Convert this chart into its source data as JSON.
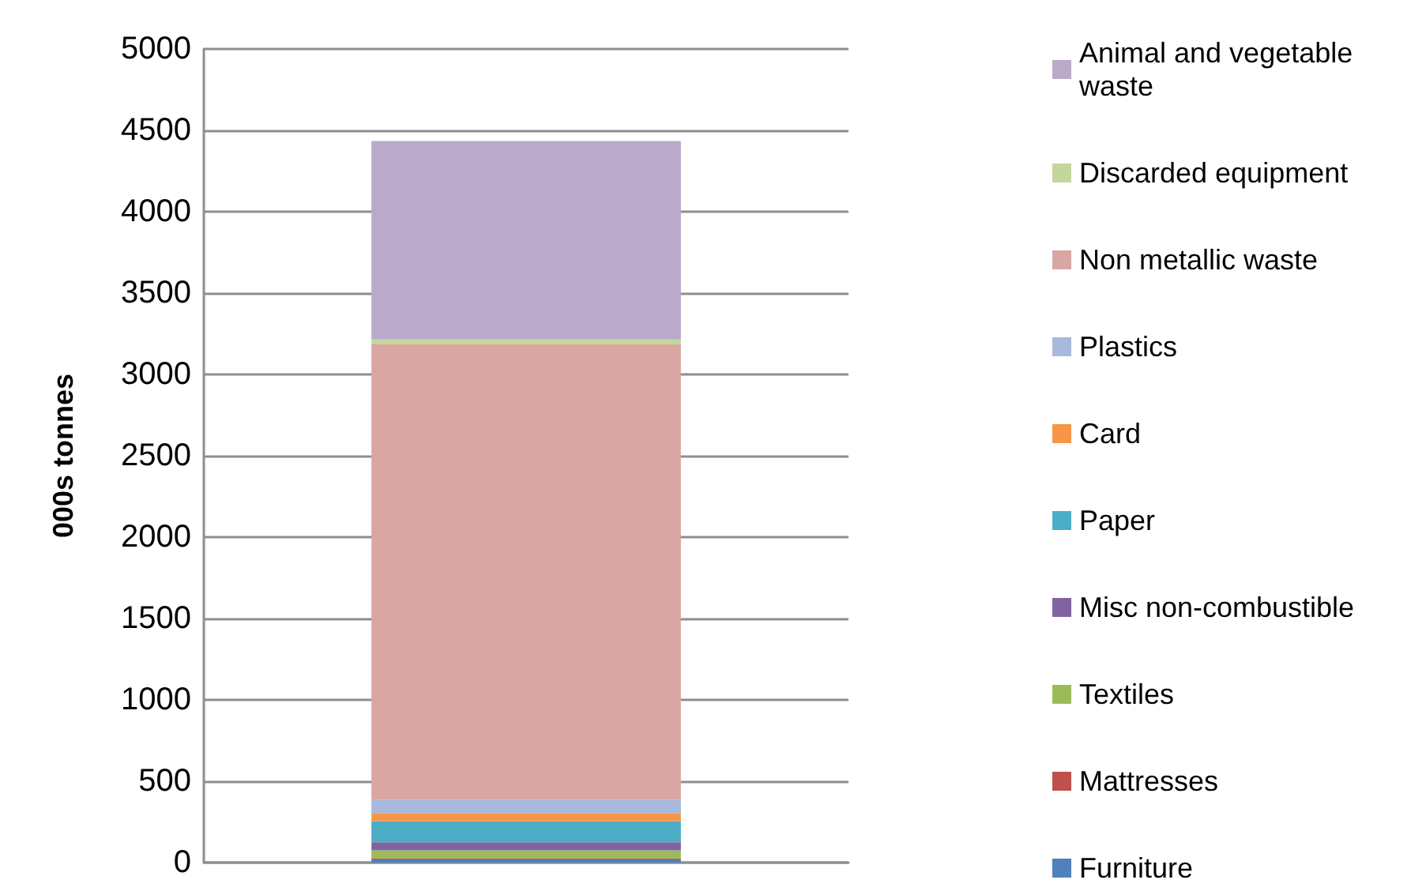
{
  "chart_data": {
    "type": "bar",
    "stacked": true,
    "ylabel": "000s tonnes",
    "categories": [
      null
    ],
    "series": [
      {
        "name": "Furniture",
        "color": "#4f81bd",
        "values": [
          20
        ]
      },
      {
        "name": "Mattresses",
        "color": "#c0504d",
        "values": [
          5
        ]
      },
      {
        "name": "Textiles",
        "color": "#9bbb59",
        "values": [
          50
        ]
      },
      {
        "name": "Misc non-combustible",
        "color": "#8064a2",
        "values": [
          50
        ]
      },
      {
        "name": "Paper",
        "color": "#4bacc6",
        "values": [
          130
        ]
      },
      {
        "name": "Card",
        "color": "#f79646",
        "values": [
          50
        ]
      },
      {
        "name": "Plastics",
        "color": "#a7b9dc",
        "values": [
          80
        ]
      },
      {
        "name": "Non metallic waste",
        "color": "#d9a6a3",
        "values": [
          2800
        ]
      },
      {
        "name": "Discarded equipment",
        "color": "#c3d69b",
        "values": [
          30
        ]
      },
      {
        "name": "Animal and vegetable waste",
        "color": "#b9aac9",
        "values": [
          1220
        ]
      }
    ],
    "ylim": [
      0,
      5000
    ],
    "yticks": [
      0,
      500,
      1000,
      1500,
      2000,
      2500,
      3000,
      3500,
      4000,
      4500,
      5000
    ],
    "grid": "y",
    "legend": "right"
  }
}
